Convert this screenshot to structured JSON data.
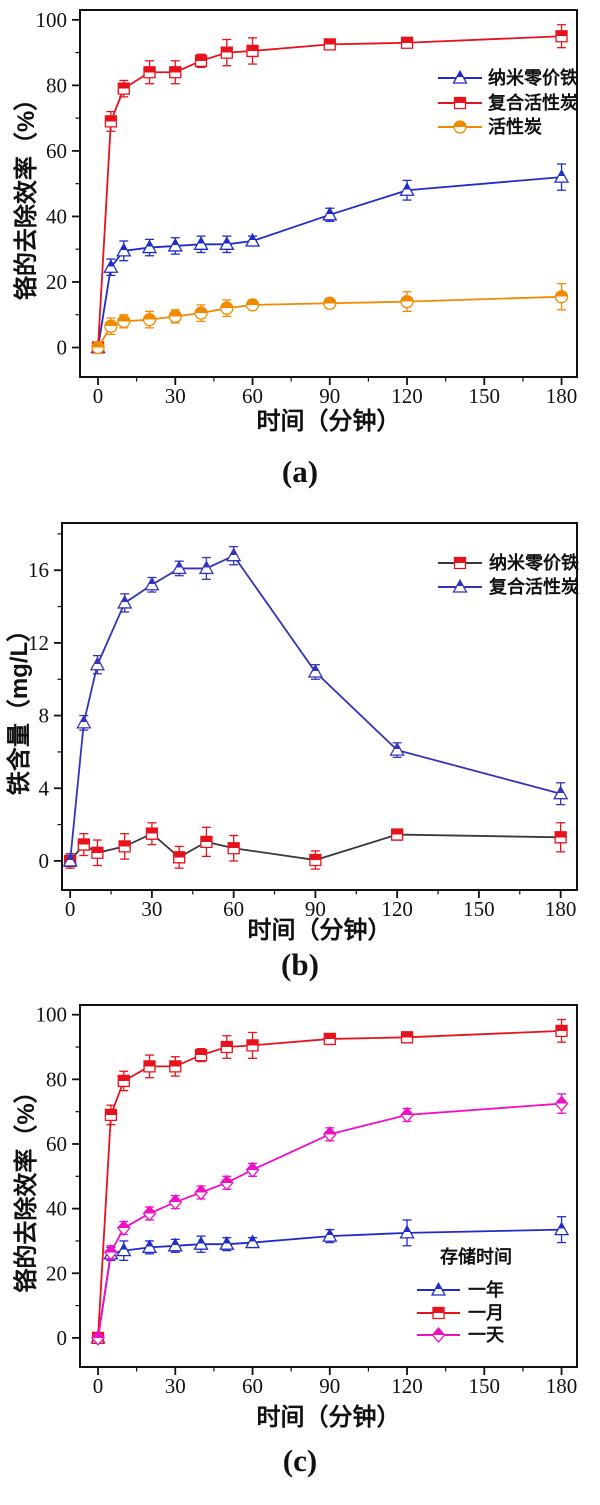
{
  "page": {
    "background": "#ffffff"
  },
  "chart_data": [
    {
      "id": "a",
      "type": "line",
      "caption": "(a)",
      "xlabel": "时间（分钟）",
      "ylabel": "铬的去除效率（%）",
      "x": [
        0,
        5,
        10,
        20,
        30,
        40,
        50,
        60,
        90,
        120,
        180
      ],
      "x_ticks": [
        0,
        30,
        60,
        90,
        120,
        150,
        180
      ],
      "x_minor": [
        15,
        45,
        75,
        105,
        135,
        165
      ],
      "xlim": [
        -7,
        186
      ],
      "y_ticks": [
        0,
        20,
        40,
        60,
        80,
        100
      ],
      "y_minor": [
        10,
        30,
        50,
        70,
        90
      ],
      "ylim": [
        -9,
        103
      ],
      "grid": false,
      "legend_position": "top-right-inside",
      "legend_title": "",
      "series": [
        {
          "name": "纳米零价铁",
          "marker": "triangle",
          "color": "#1f2cc8",
          "line_color": "#1f2cc8",
          "values": [
            0,
            24.5,
            29.5,
            30.5,
            31,
            31.5,
            31.5,
            32.5,
            40.5,
            48,
            52
          ],
          "errors": [
            1,
            2.5,
            3,
            2.5,
            2.5,
            2.5,
            2.5,
            1.5,
            2,
            3,
            4
          ]
        },
        {
          "name": "复合活性炭",
          "marker": "square",
          "color": "#e8121c",
          "line_color": "#e8121c",
          "values": [
            0,
            69,
            79,
            84,
            84,
            87.5,
            90,
            90.5,
            92.5,
            93,
            95
          ],
          "errors": [
            1,
            3,
            2.5,
            3.5,
            3.5,
            2,
            4,
            4,
            1.5,
            1.5,
            3.5
          ]
        },
        {
          "name": "活性炭",
          "marker": "circle",
          "color": "#f28a00",
          "line_color": "#f28a00",
          "values": [
            0,
            6.5,
            8,
            8.5,
            9.5,
            10.5,
            12,
            13,
            13.5,
            14,
            15.5
          ],
          "errors": [
            1,
            2.5,
            2,
            2.5,
            2,
            2.5,
            2.5,
            1.5,
            1.5,
            3,
            4
          ]
        }
      ]
    },
    {
      "id": "b",
      "type": "line",
      "caption": "(b)",
      "xlabel": "时间（分钟）",
      "ylabel": "铁含量（mg/L）",
      "x": [
        0,
        5,
        10,
        20,
        30,
        40,
        50,
        60,
        90,
        120,
        180
      ],
      "x_ticks": [
        0,
        30,
        60,
        90,
        120,
        150,
        180
      ],
      "x_minor": [
        15,
        45,
        75,
        105,
        135,
        165
      ],
      "xlim": [
        -3,
        186
      ],
      "y_ticks": [
        0,
        4,
        8,
        12,
        16
      ],
      "y_minor": [
        2,
        6,
        10,
        14,
        18
      ],
      "ylim": [
        -1.6,
        18.6
      ],
      "grid": false,
      "legend_position": "top-right-inside",
      "legend_title": "",
      "series": [
        {
          "name": "纳米零价铁",
          "marker": "square",
          "color": "#e8121c",
          "line_color": "#3a3a3a",
          "values": [
            0,
            0.9,
            0.45,
            0.8,
            1.5,
            0.2,
            1.05,
            0.7,
            0.05,
            1.45,
            1.3
          ],
          "errors": [
            0.4,
            0.6,
            0.7,
            0.7,
            0.6,
            0.6,
            0.8,
            0.7,
            0.5,
            0.3,
            0.8
          ]
        },
        {
          "name": "复合活性炭",
          "marker": "triangle",
          "color": "#3434b8",
          "line_color": "#3434b8",
          "values": [
            0,
            7.6,
            10.8,
            14.2,
            15.2,
            16.1,
            16.1,
            16.8,
            10.4,
            6.1,
            3.7
          ],
          "errors": [
            0.3,
            0.4,
            0.5,
            0.5,
            0.4,
            0.4,
            0.6,
            0.5,
            0.4,
            0.4,
            0.6
          ]
        }
      ]
    },
    {
      "id": "c",
      "type": "line",
      "caption": "(c)",
      "xlabel": "时间（分钟）",
      "ylabel": "铬的去除效率（%）",
      "x": [
        0,
        5,
        10,
        20,
        30,
        40,
        50,
        60,
        90,
        120,
        180
      ],
      "x_ticks": [
        0,
        30,
        60,
        90,
        120,
        150,
        180
      ],
      "x_minor": [
        15,
        45,
        75,
        105,
        135,
        165
      ],
      "xlim": [
        -7,
        186
      ],
      "y_ticks": [
        0,
        20,
        40,
        60,
        80,
        100
      ],
      "y_minor": [
        10,
        30,
        50,
        70,
        90
      ],
      "ylim": [
        -9,
        103
      ],
      "grid": false,
      "legend_position": "bottom-right-inside",
      "legend_title": "存储时间",
      "series": [
        {
          "name": "一年",
          "marker": "triangle",
          "color": "#1f2cc8",
          "line_color": "#1f2cc8",
          "values": [
            0,
            26,
            27,
            28,
            28.5,
            29,
            29,
            29.5,
            31.5,
            32.5,
            33.5
          ],
          "errors": [
            1,
            2,
            3,
            2,
            2,
            2.5,
            2,
            1.5,
            2,
            4,
            4
          ]
        },
        {
          "name": "一月",
          "marker": "square",
          "color": "#e8121c",
          "line_color": "#e8121c",
          "values": [
            0,
            69,
            79.5,
            84,
            84,
            87.5,
            90,
            90.5,
            92.5,
            93,
            95
          ],
          "errors": [
            1,
            3,
            3,
            3.5,
            3,
            2,
            3.5,
            4,
            1.5,
            1.5,
            3.5
          ]
        },
        {
          "name": "一天",
          "marker": "diamond",
          "color": "#ee10c4",
          "line_color": "#ee10c4",
          "values": [
            0,
            26.5,
            34,
            38.5,
            42,
            45,
            48,
            52,
            63,
            69,
            72.5
          ],
          "errors": [
            1,
            2,
            2,
            2,
            2,
            2,
            2,
            2,
            2,
            2,
            3
          ]
        }
      ]
    }
  ]
}
